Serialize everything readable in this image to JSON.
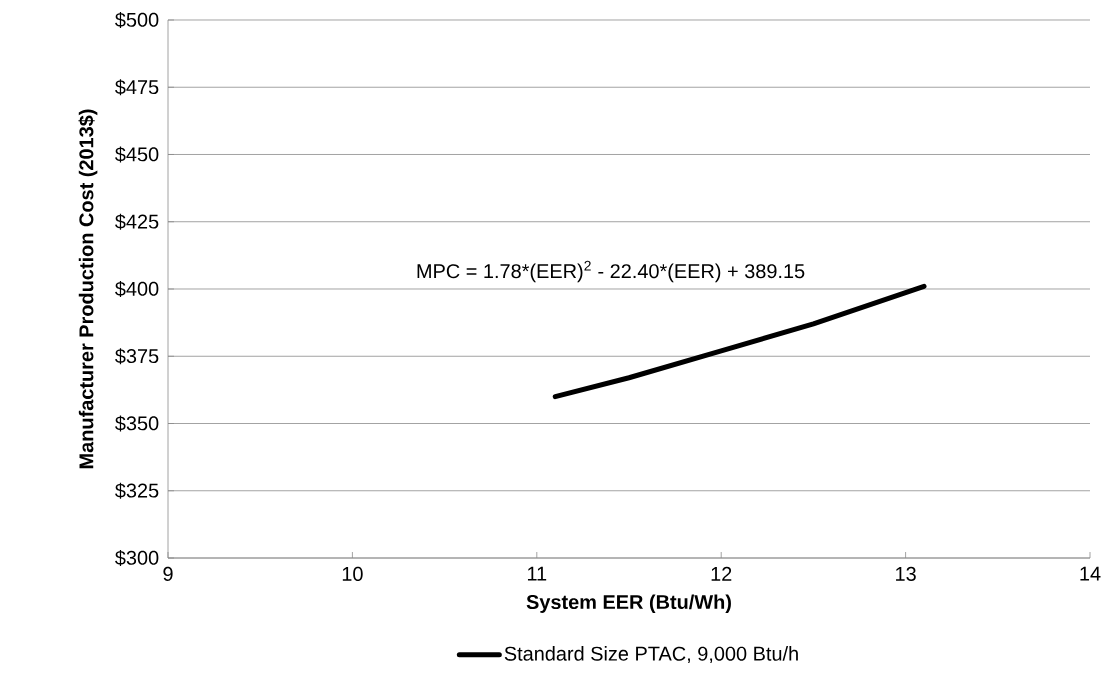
{
  "chart_data": {
    "type": "line",
    "xlabel": "System EER (Btu/Wh)",
    "ylabel": "Manufacturer Production Cost (2013$)",
    "xlim": [
      9,
      14
    ],
    "xticks": [
      9,
      10,
      11,
      12,
      13,
      14
    ],
    "ylim": [
      300,
      500
    ],
    "yticks": [
      {
        "value": 300,
        "label": "$300"
      },
      {
        "value": 325,
        "label": "$325"
      },
      {
        "value": 350,
        "label": "$350"
      },
      {
        "value": 375,
        "label": "$375"
      },
      {
        "value": 400,
        "label": "$400"
      },
      {
        "value": 425,
        "label": "$425"
      },
      {
        "value": 450,
        "label": "$450"
      },
      {
        "value": 475,
        "label": "$475"
      },
      {
        "value": 500,
        "label": "$500"
      }
    ],
    "grid": "y",
    "legend": "bottom",
    "marker": "none",
    "line_style": "solid",
    "series": [
      {
        "name": "Standard Size PTAC, 9,000 Btu/h",
        "color": "#000000",
        "x": [
          11.1,
          11.5,
          12,
          12.5,
          13.1
        ],
        "values": [
          360,
          367,
          377,
          387,
          401
        ]
      }
    ],
    "annotations": [
      "MPC = 1.78*(EER)$^{2}$ - 22.40*(EER) + 389.15"
    ]
  }
}
